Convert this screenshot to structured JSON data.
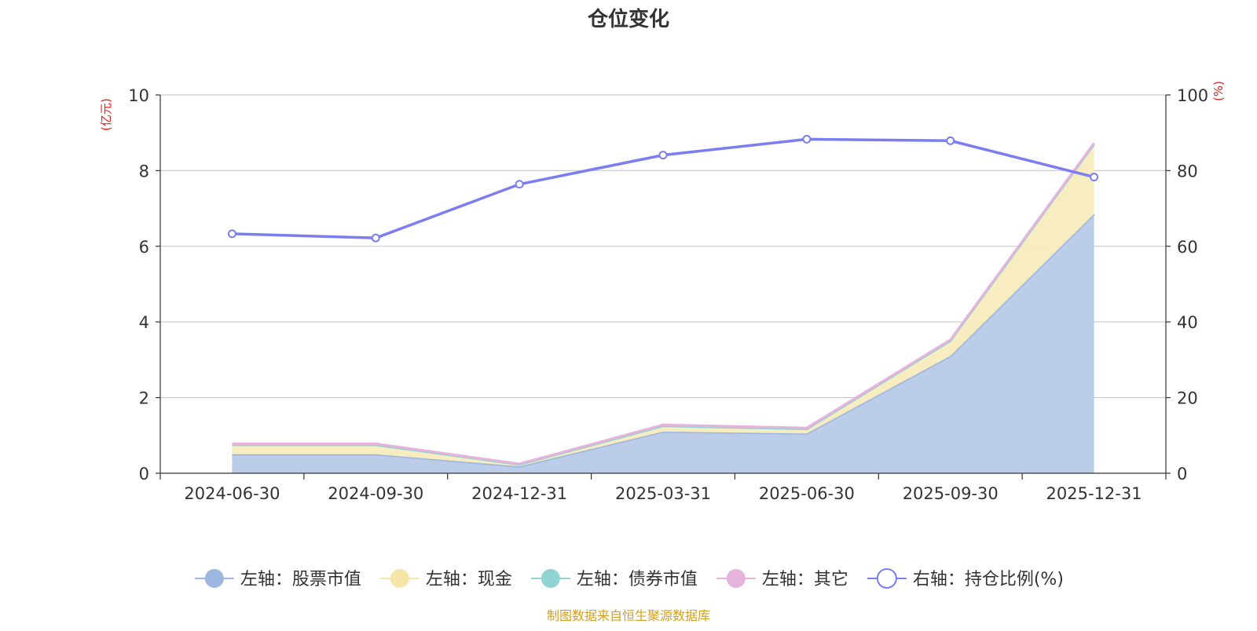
{
  "chart_data": {
    "type": "area",
    "title": "仓位变化",
    "categories": [
      "2024-06-30",
      "2024-09-30",
      "2024-12-31",
      "2025-03-31",
      "2025-06-30",
      "2025-09-30",
      "2025-12-31"
    ],
    "left_axis": {
      "unit_label": "(亿元)",
      "ylim": [
        0,
        10
      ],
      "ticks": [
        "0",
        "2",
        "4",
        "6",
        "8",
        "10"
      ]
    },
    "right_axis": {
      "unit_label": "(%)",
      "ylim": [
        0,
        100
      ],
      "ticks": [
        "0",
        "20",
        "40",
        "60",
        "80",
        "100"
      ]
    },
    "stacked": true,
    "series": [
      {
        "name": "左轴：股票市值",
        "axis": "left",
        "kind": "area",
        "color": "#9cb6e0",
        "fill": "#b8cae9",
        "values": [
          0.5,
          0.5,
          0.18,
          1.1,
          1.05,
          3.1,
          6.85
        ]
      },
      {
        "name": "左轴：现金",
        "axis": "left",
        "kind": "area",
        "color": "#f5e6a8",
        "fill": "#f8ecbe",
        "values": [
          0.25,
          0.25,
          0.05,
          0.15,
          0.12,
          0.4,
          1.85
        ]
      },
      {
        "name": "左轴：债券市值",
        "axis": "left",
        "kind": "area",
        "color": "#8fd3d3",
        "fill": "#a9dede",
        "values": [
          0,
          0,
          0,
          0,
          0,
          0,
          0
        ]
      },
      {
        "name": "左轴：其它",
        "axis": "left",
        "kind": "area",
        "color": "#e6b3dc",
        "fill": "#efcbe7",
        "values": [
          0.03,
          0.03,
          0.02,
          0.03,
          0.03,
          0.03,
          0.03
        ]
      },
      {
        "name": "右轴：持仓比例(%)",
        "axis": "right",
        "kind": "line",
        "color": "#7b7ef0",
        "values": [
          63.3,
          62.2,
          76.4,
          84.1,
          88.3,
          87.9,
          78.3
        ]
      }
    ],
    "grid": true,
    "legend_position": "bottom"
  },
  "source_note": "制图数据来自恒生聚源数据库"
}
